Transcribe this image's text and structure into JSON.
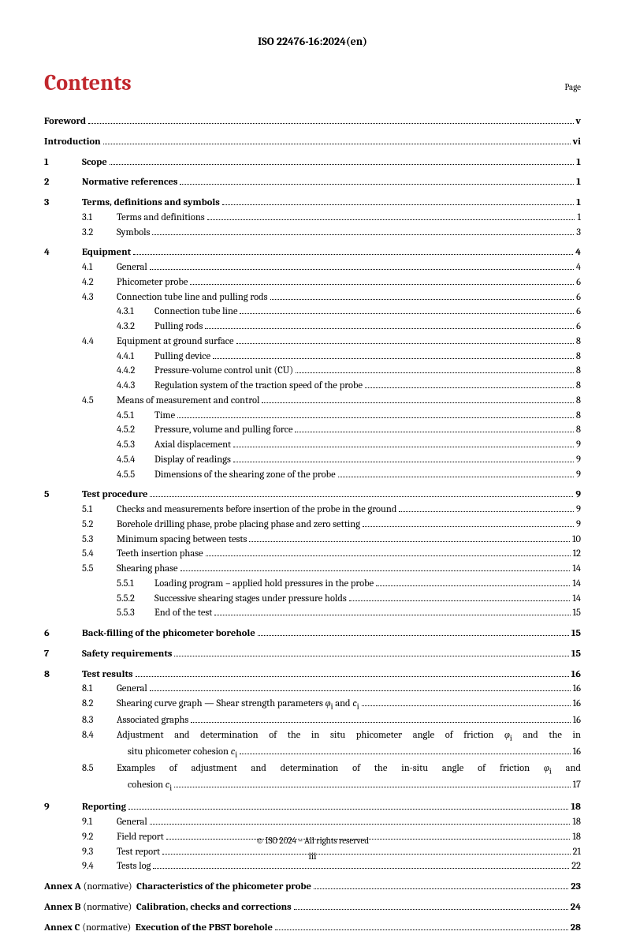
{
  "header": "ISO 22476-16:2024(en)",
  "title": "Contents",
  "page_label": "Page",
  "colors": {
    "accent": "#c1272d",
    "text": "#000000",
    "bg": "#ffffff"
  },
  "footer": {
    "copyright": "© ISO 2024 – All rights reserved",
    "pagenum": "iii"
  },
  "sections": [
    {
      "lines": [
        {
          "level": 1,
          "bold": true,
          "num": "",
          "text": "Foreword",
          "page": "v"
        }
      ]
    },
    {
      "lines": [
        {
          "level": 1,
          "bold": true,
          "num": "",
          "text": "Introduction",
          "page": "vi"
        }
      ]
    },
    {
      "lines": [
        {
          "level": 1,
          "bold": true,
          "num": "1",
          "text": "Scope",
          "page": "1"
        }
      ]
    },
    {
      "lines": [
        {
          "level": 1,
          "bold": true,
          "num": "2",
          "text": "Normative references",
          "page": "1"
        }
      ]
    },
    {
      "lines": [
        {
          "level": 1,
          "bold": true,
          "num": "3",
          "text": "Terms, definitions and symbols",
          "page": "1"
        },
        {
          "level": 2,
          "num": "3.1",
          "text": "Terms and definitions",
          "page": "1"
        },
        {
          "level": 2,
          "num": "3.2",
          "text": "Symbols",
          "page": "3"
        }
      ]
    },
    {
      "lines": [
        {
          "level": 1,
          "bold": true,
          "num": "4",
          "text": "Equipment",
          "page": "4"
        },
        {
          "level": 2,
          "num": "4.1",
          "text": "General",
          "page": "4"
        },
        {
          "level": 2,
          "num": "4.2",
          "text": "Phicometer probe",
          "page": "6"
        },
        {
          "level": 2,
          "num": "4.3",
          "text": "Connection tube line and pulling rods",
          "page": "6"
        },
        {
          "level": 3,
          "num": "4.3.1",
          "text": "Connection tube line",
          "page": "6"
        },
        {
          "level": 3,
          "num": "4.3.2",
          "text": "Pulling rods",
          "page": "6"
        },
        {
          "level": 2,
          "num": "4.4",
          "text": "Equipment at ground surface",
          "page": "8"
        },
        {
          "level": 3,
          "num": "4.4.1",
          "text": "Pulling device",
          "page": "8"
        },
        {
          "level": 3,
          "num": "4.4.2",
          "text": "Pressure-volume control unit (CU)",
          "page": "8"
        },
        {
          "level": 3,
          "num": "4.4.3",
          "text": "Regulation system of the traction speed of the probe",
          "page": "8"
        },
        {
          "level": 2,
          "num": "4.5",
          "text": "Means of measurement and control",
          "page": "8"
        },
        {
          "level": 3,
          "num": "4.5.1",
          "text": "Time",
          "page": "8"
        },
        {
          "level": 3,
          "num": "4.5.2",
          "text": "Pressure, volume and pulling force",
          "page": "8"
        },
        {
          "level": 3,
          "num": "4.5.3",
          "text": "Axial displacement",
          "page": "9"
        },
        {
          "level": 3,
          "num": "4.5.4",
          "text": "Display of readings",
          "page": "9"
        },
        {
          "level": 3,
          "num": "4.5.5",
          "text": "Dimensions of the shearing zone of the probe",
          "page": "9"
        }
      ]
    },
    {
      "lines": [
        {
          "level": 1,
          "bold": true,
          "num": "5",
          "text": "Test procedure",
          "page": "9"
        },
        {
          "level": 2,
          "num": "5.1",
          "text": "Checks and measurements before insertion of the probe in the ground",
          "page": "9"
        },
        {
          "level": 2,
          "num": "5.2",
          "text": "Borehole drilling phase, probe placing phase and zero setting",
          "page": "9"
        },
        {
          "level": 2,
          "num": "5.3",
          "text": "Minimum spacing between tests",
          "page": "10"
        },
        {
          "level": 2,
          "num": "5.4",
          "text": "Teeth insertion phase",
          "page": "12"
        },
        {
          "level": 2,
          "num": "5.5",
          "text": "Shearing phase",
          "page": "14"
        },
        {
          "level": 3,
          "num": "5.5.1",
          "text": "Loading program – applied hold pressures in the probe",
          "page": "14"
        },
        {
          "level": 3,
          "num": "5.5.2",
          "text": "Successive shearing stages under pressure holds",
          "page": "14"
        },
        {
          "level": 3,
          "num": "5.5.3",
          "text": "End of the test",
          "page": "15"
        }
      ]
    },
    {
      "lines": [
        {
          "level": 1,
          "bold": true,
          "num": "6",
          "text": "Back-filling of the phicometer borehole",
          "page": "15"
        }
      ]
    },
    {
      "lines": [
        {
          "level": 1,
          "bold": true,
          "num": "7",
          "text": "Safety requirements",
          "page": "15"
        }
      ]
    },
    {
      "lines": [
        {
          "level": 1,
          "bold": true,
          "num": "8",
          "text": "Test results",
          "page": "16"
        },
        {
          "level": 2,
          "num": "8.1",
          "text": "General",
          "page": "16"
        },
        {
          "level": 2,
          "num": "8.2",
          "html": "Shearing curve graph — Shear strength parameters <span class='ital'>φ</span><sub>i</sub> and <span class='ital'>c</span><sub>i</sub>",
          "page": "16"
        },
        {
          "level": 2,
          "num": "8.3",
          "text": "Associated graphs",
          "page": "16"
        },
        {
          "level": 2,
          "num": "8.4",
          "wrap": true,
          "html1": "Adjustment and determination of the in situ phicometer angle of friction <span class='ital'>φ</span><sub>i</sub> and the in",
          "html2": "situ phicometer cohesion <span class='ital'>c</span><sub>i</sub>",
          "page": "16"
        },
        {
          "level": 2,
          "num": "8.5",
          "wrap": true,
          "html1": "Examples of adjustment and determination of the in-situ angle of friction <span class='ital'>φ</span><sub>i</sub> and",
          "html2": "cohesion <span class='ital'>c</span><sub>i</sub>",
          "page": "17"
        }
      ]
    },
    {
      "lines": [
        {
          "level": 1,
          "bold": true,
          "num": "9",
          "text": "Reporting",
          "page": "18"
        },
        {
          "level": 2,
          "num": "9.1",
          "text": "General",
          "page": "18"
        },
        {
          "level": 2,
          "num": "9.2",
          "text": "Field report",
          "page": "18"
        },
        {
          "level": 2,
          "num": "9.3",
          "text": "Test report",
          "page": "21"
        },
        {
          "level": 2,
          "num": "9.4",
          "text": "Tests log",
          "page": "22"
        }
      ]
    },
    {
      "lines": [
        {
          "level": 1,
          "annex": true,
          "label": "Annex A",
          "norm": "(normative)",
          "title": "Characteristics of the phicometer probe",
          "page": "23"
        }
      ]
    },
    {
      "lines": [
        {
          "level": 1,
          "annex": true,
          "label": "Annex B",
          "norm": "(normative)",
          "title": "Calibration, checks and corrections",
          "page": "24"
        }
      ]
    },
    {
      "lines": [
        {
          "level": 1,
          "annex": true,
          "label": "Annex C",
          "norm": "(normative)",
          "title": "Execution of the PBST borehole",
          "page": "28"
        }
      ]
    }
  ]
}
